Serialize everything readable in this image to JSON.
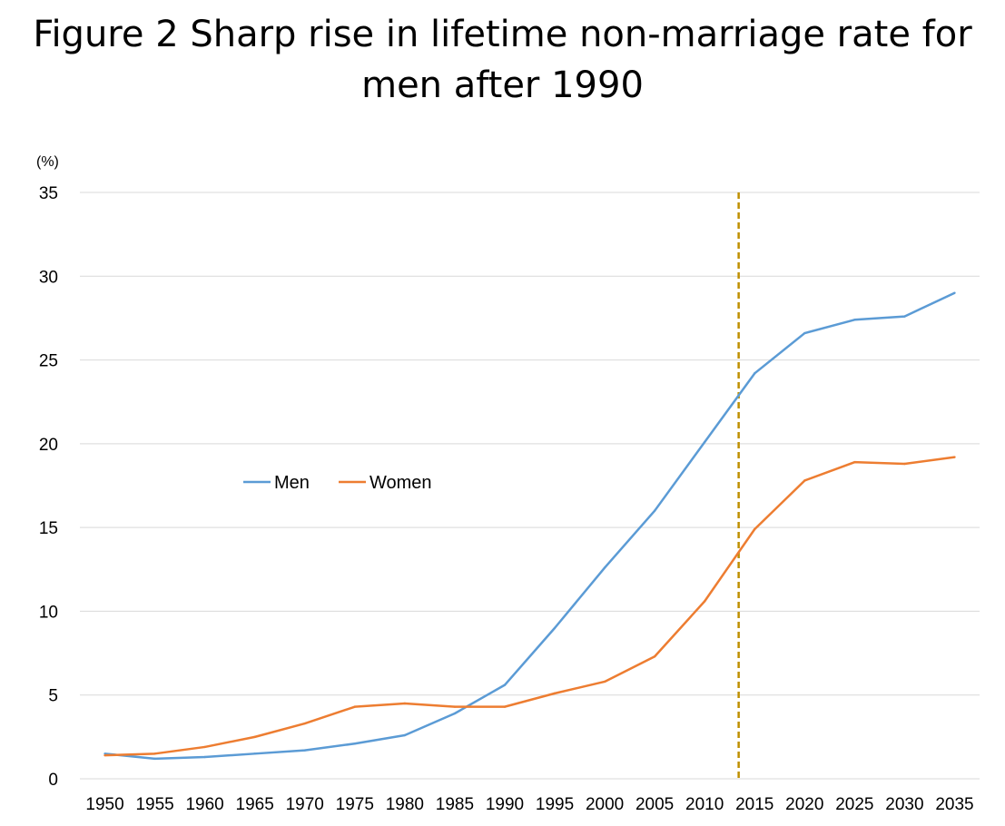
{
  "title_line1": "Figure 2 Sharp rise in lifetime non-marriage rate for",
  "title_line2": "men after 1990",
  "chart_data": {
    "type": "line",
    "title": "Figure 2 Sharp rise in lifetime non-marriage rate for men after 1990",
    "ylabel": "(%)",
    "xlabel": "",
    "ylim": [
      0,
      35
    ],
    "yticks": [
      0,
      5,
      10,
      15,
      20,
      25,
      30,
      35
    ],
    "categories": [
      "1950",
      "1955",
      "1960",
      "1965",
      "1970",
      "1975",
      "1980",
      "1985",
      "1990",
      "1995",
      "2000",
      "2005",
      "2010",
      "2015",
      "2020",
      "2025",
      "2030",
      "2035"
    ],
    "series": [
      {
        "name": "Men",
        "color": "#5B9BD5",
        "values": [
          1.5,
          1.2,
          1.3,
          1.5,
          1.7,
          2.1,
          2.6,
          3.9,
          5.6,
          9.0,
          12.6,
          16.0,
          20.1,
          24.2,
          26.6,
          27.4,
          27.6,
          29.0
        ]
      },
      {
        "name": "Women",
        "color": "#ED7D31",
        "values": [
          1.4,
          1.5,
          1.9,
          2.5,
          3.3,
          4.3,
          4.5,
          4.3,
          4.3,
          5.1,
          5.8,
          7.3,
          10.6,
          14.9,
          17.8,
          18.9,
          18.8,
          19.2
        ]
      }
    ],
    "reference_line": {
      "style": "dashed",
      "color": "#BF9000",
      "x_between": [
        "2010",
        "2015"
      ]
    },
    "grid": "horizontal",
    "legend_position": "center-left"
  }
}
